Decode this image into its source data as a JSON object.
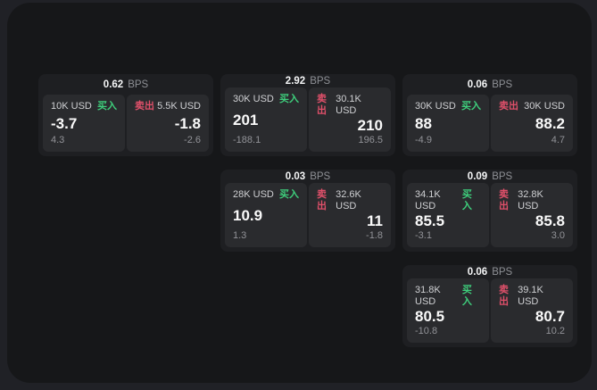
{
  "labels": {
    "bps_unit": "BPS",
    "buy": "买入",
    "sell": "卖出"
  },
  "colors": {
    "backdrop": "#202126",
    "panel": "#161719",
    "card": "#1e1f22",
    "tile": "#2a2b2e",
    "buy": "#3ecf7c",
    "sell": "#e0506a"
  },
  "cards": [
    {
      "bps": "0.62",
      "row": 1,
      "col": 1,
      "buy": {
        "amount": "10K USD",
        "value": "-3.7",
        "delta": "4.3"
      },
      "sell": {
        "amount": "5.5K USD",
        "value": "-1.8",
        "delta": "-2.6"
      }
    },
    {
      "bps": "2.92",
      "row": 1,
      "col": 2,
      "buy": {
        "amount": "30K USD",
        "value": "201",
        "delta": "-188.1"
      },
      "sell": {
        "amount": "30.1K USD",
        "value": "210",
        "delta": "196.5"
      }
    },
    {
      "bps": "0.06",
      "row": 1,
      "col": 3,
      "buy": {
        "amount": "30K USD",
        "value": "88",
        "delta": "-4.9"
      },
      "sell": {
        "amount": "30K USD",
        "value": "88.2",
        "delta": "4.7"
      }
    },
    {
      "bps": "0.03",
      "row": 2,
      "col": 2,
      "buy": {
        "amount": "28K USD",
        "value": "10.9",
        "delta": "1.3"
      },
      "sell": {
        "amount": "32.6K USD",
        "value": "11",
        "delta": "-1.8"
      }
    },
    {
      "bps": "0.09",
      "row": 2,
      "col": 3,
      "buy": {
        "amount": "34.1K USD",
        "value": "85.5",
        "delta": "-3.1"
      },
      "sell": {
        "amount": "32.8K USD",
        "value": "85.8",
        "delta": "3.0"
      }
    },
    {
      "bps": "0.06",
      "row": 3,
      "col": 3,
      "buy": {
        "amount": "31.8K USD",
        "value": "80.5",
        "delta": "-10.8"
      },
      "sell": {
        "amount": "39.1K USD",
        "value": "80.7",
        "delta": "10.2"
      }
    }
  ]
}
